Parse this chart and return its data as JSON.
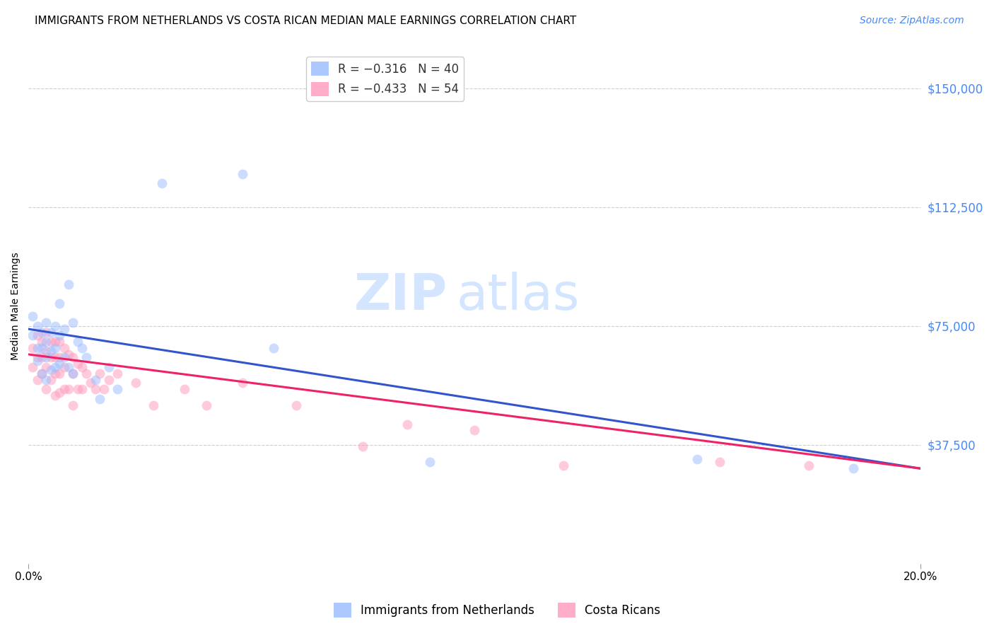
{
  "title": "IMMIGRANTS FROM NETHERLANDS VS COSTA RICAN MEDIAN MALE EARNINGS CORRELATION CHART",
  "source": "Source: ZipAtlas.com",
  "ylabel": "Median Male Earnings",
  "yticks": [
    0,
    37500,
    75000,
    112500,
    150000
  ],
  "ymin": 0,
  "ymax": 162500,
  "xmin": 0.0,
  "xmax": 0.2,
  "background_color": "#ffffff",
  "grid_color": "#d0d0d0",
  "blue_color": "#99bbff",
  "pink_color": "#ff99bb",
  "blue_line_color": "#3355cc",
  "pink_line_color": "#ee2266",
  "legend_R_blue": "R = −0.316",
  "legend_N_blue": "N = 40",
  "legend_R_pink": "R = −0.433",
  "legend_N_pink": "N = 54",
  "watermark_zip": "ZIP",
  "watermark_atlas": "atlas",
  "blue_scatter_x": [
    0.001,
    0.001,
    0.002,
    0.002,
    0.002,
    0.003,
    0.003,
    0.003,
    0.004,
    0.004,
    0.004,
    0.004,
    0.005,
    0.005,
    0.005,
    0.006,
    0.006,
    0.006,
    0.007,
    0.007,
    0.007,
    0.008,
    0.008,
    0.009,
    0.009,
    0.01,
    0.01,
    0.011,
    0.012,
    0.013,
    0.015,
    0.016,
    0.018,
    0.02,
    0.03,
    0.048,
    0.055,
    0.09,
    0.15,
    0.185
  ],
  "blue_scatter_y": [
    78000,
    72000,
    75000,
    68000,
    64000,
    73000,
    68000,
    60000,
    76000,
    70000,
    65000,
    58000,
    73000,
    67000,
    61000,
    75000,
    68000,
    62000,
    82000,
    72000,
    63000,
    74000,
    65000,
    88000,
    62000,
    76000,
    60000,
    70000,
    68000,
    65000,
    58000,
    52000,
    62000,
    55000,
    120000,
    123000,
    68000,
    32000,
    33000,
    30000
  ],
  "pink_scatter_x": [
    0.001,
    0.001,
    0.002,
    0.002,
    0.002,
    0.003,
    0.003,
    0.003,
    0.004,
    0.004,
    0.004,
    0.004,
    0.005,
    0.005,
    0.005,
    0.006,
    0.006,
    0.006,
    0.006,
    0.007,
    0.007,
    0.007,
    0.007,
    0.008,
    0.008,
    0.008,
    0.009,
    0.009,
    0.01,
    0.01,
    0.01,
    0.011,
    0.011,
    0.012,
    0.012,
    0.013,
    0.014,
    0.015,
    0.016,
    0.017,
    0.018,
    0.02,
    0.024,
    0.028,
    0.035,
    0.04,
    0.048,
    0.06,
    0.075,
    0.085,
    0.1,
    0.12,
    0.155,
    0.175
  ],
  "pink_scatter_y": [
    68000,
    62000,
    72000,
    65000,
    58000,
    70000,
    65000,
    60000,
    73000,
    67000,
    62000,
    55000,
    70000,
    65000,
    58000,
    70000,
    65000,
    60000,
    53000,
    70000,
    65000,
    60000,
    54000,
    68000,
    62000,
    55000,
    66000,
    55000,
    65000,
    60000,
    50000,
    63000,
    55000,
    62000,
    55000,
    60000,
    57000,
    55000,
    60000,
    55000,
    58000,
    60000,
    57000,
    50000,
    55000,
    50000,
    57000,
    50000,
    37000,
    44000,
    42000,
    31000,
    32000,
    31000
  ],
  "blue_line_x0": 0.0,
  "blue_line_x1": 0.2,
  "blue_line_y0": 74000,
  "blue_line_y1": 30000,
  "pink_line_x0": 0.0,
  "pink_line_x1": 0.2,
  "pink_line_y0": 66000,
  "pink_line_y1": 30000,
  "blue_marker_size": 100,
  "pink_marker_size": 100,
  "blue_alpha": 0.5,
  "pink_alpha": 0.5,
  "title_fontsize": 11,
  "axis_label_fontsize": 10,
  "tick_fontsize": 11,
  "legend_fontsize": 12,
  "source_fontsize": 10,
  "watermark_fontsize": 52,
  "ytick_color": "#4488ff",
  "legend_R_color": "#cc2255",
  "legend_N_color": "#2255cc"
}
